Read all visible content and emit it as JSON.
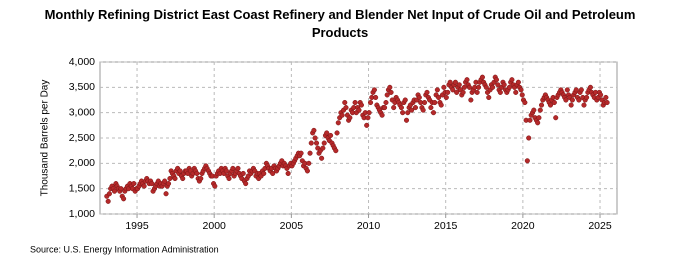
{
  "chart_data": {
    "type": "scatter",
    "title": "Monthly Refining District East Coast Refinery and Blender Net Input of Crude Oil and Petroleum Products",
    "y_label": "Thousand Barrels per Day",
    "source": "Source: U.S. Energy Information Administration",
    "color": "#b5292a",
    "grid": true,
    "xlim": [
      1992.6,
      2026.1
    ],
    "xticks": [
      1995,
      2000,
      2005,
      2010,
      2015,
      2020,
      2025
    ],
    "ylim": [
      1000,
      4000
    ],
    "yticks": [
      {
        "value": 1000,
        "label": "1,000"
      },
      {
        "value": 1500,
        "label": "1,500"
      },
      {
        "value": 2000,
        "label": "2,000"
      },
      {
        "value": 2500,
        "label": "2,500"
      },
      {
        "value": 3000,
        "label": "3,000"
      },
      {
        "value": 3500,
        "label": "3,500"
      },
      {
        "value": 4000,
        "label": "4,000"
      }
    ],
    "x": [
      1993.04,
      1993.13,
      1993.21,
      1993.29,
      1993.38,
      1993.46,
      1993.54,
      1993.63,
      1993.71,
      1993.79,
      1993.88,
      1993.96,
      1994.04,
      1994.13,
      1994.21,
      1994.29,
      1994.38,
      1994.46,
      1994.54,
      1994.63,
      1994.71,
      1994.79,
      1994.88,
      1994.96,
      1995.04,
      1995.13,
      1995.21,
      1995.29,
      1995.38,
      1995.46,
      1995.54,
      1995.63,
      1995.71,
      1995.79,
      1995.88,
      1995.96,
      1996.04,
      1996.13,
      1996.21,
      1996.29,
      1996.38,
      1996.46,
      1996.54,
      1996.63,
      1996.71,
      1996.79,
      1996.88,
      1996.96,
      1997.04,
      1997.13,
      1997.21,
      1997.29,
      1997.38,
      1997.46,
      1997.54,
      1997.63,
      1997.71,
      1997.79,
      1997.88,
      1997.96,
      1998.04,
      1998.13,
      1998.21,
      1998.29,
      1998.38,
      1998.46,
      1998.54,
      1998.63,
      1998.71,
      1998.79,
      1998.88,
      1998.96,
      1999.04,
      1999.13,
      1999.21,
      1999.29,
      1999.38,
      1999.46,
      1999.54,
      1999.63,
      1999.71,
      1999.79,
      1999.88,
      1999.96,
      2000.04,
      2000.13,
      2000.21,
      2000.29,
      2000.38,
      2000.46,
      2000.54,
      2000.63,
      2000.71,
      2000.79,
      2000.88,
      2000.96,
      2001.04,
      2001.13,
      2001.21,
      2001.29,
      2001.38,
      2001.46,
      2001.54,
      2001.63,
      2001.71,
      2001.79,
      2001.88,
      2001.96,
      2002.04,
      2002.13,
      2002.21,
      2002.29,
      2002.38,
      2002.46,
      2002.54,
      2002.63,
      2002.71,
      2002.79,
      2002.88,
      2002.96,
      2003.04,
      2003.13,
      2003.21,
      2003.29,
      2003.38,
      2003.46,
      2003.54,
      2003.63,
      2003.71,
      2003.79,
      2003.88,
      2003.96,
      2004.04,
      2004.13,
      2004.21,
      2004.29,
      2004.38,
      2004.46,
      2004.54,
      2004.63,
      2004.71,
      2004.79,
      2004.88,
      2004.96,
      2005.04,
      2005.13,
      2005.21,
      2005.29,
      2005.38,
      2005.46,
      2005.54,
      2005.63,
      2005.71,
      2005.79,
      2005.88,
      2005.96,
      2006.04,
      2006.13,
      2006.21,
      2006.29,
      2006.38,
      2006.46,
      2006.54,
      2006.63,
      2006.71,
      2006.79,
      2006.88,
      2006.96,
      2007.04,
      2007.13,
      2007.21,
      2007.29,
      2007.38,
      2007.46,
      2007.54,
      2007.63,
      2007.71,
      2007.79,
      2007.88,
      2007.96,
      2008.04,
      2008.13,
      2008.21,
      2008.29,
      2008.38,
      2008.46,
      2008.54,
      2008.63,
      2008.71,
      2008.79,
      2008.88,
      2008.96,
      2009.04,
      2009.13,
      2009.21,
      2009.29,
      2009.38,
      2009.46,
      2009.54,
      2009.63,
      2009.71,
      2009.79,
      2009.88,
      2009.96,
      2010.04,
      2010.13,
      2010.21,
      2010.29,
      2010.38,
      2010.46,
      2010.54,
      2010.63,
      2010.71,
      2010.79,
      2010.88,
      2010.96,
      2011.04,
      2011.13,
      2011.21,
      2011.29,
      2011.38,
      2011.46,
      2011.54,
      2011.63,
      2011.71,
      2011.79,
      2011.88,
      2011.96,
      2012.04,
      2012.13,
      2012.21,
      2012.29,
      2012.38,
      2012.46,
      2012.54,
      2012.63,
      2012.71,
      2012.79,
      2012.88,
      2012.96,
      2013.04,
      2013.13,
      2013.21,
      2013.29,
      2013.38,
      2013.46,
      2013.54,
      2013.63,
      2013.71,
      2013.79,
      2013.88,
      2013.96,
      2014.04,
      2014.13,
      2014.21,
      2014.29,
      2014.38,
      2014.46,
      2014.54,
      2014.63,
      2014.71,
      2014.79,
      2014.88,
      2014.96,
      2015.04,
      2015.13,
      2015.21,
      2015.29,
      2015.38,
      2015.46,
      2015.54,
      2015.63,
      2015.71,
      2015.79,
      2015.88,
      2015.96,
      2016.04,
      2016.13,
      2016.21,
      2016.29,
      2016.38,
      2016.46,
      2016.54,
      2016.63,
      2016.71,
      2016.79,
      2016.88,
      2016.96,
      2017.04,
      2017.13,
      2017.21,
      2017.29,
      2017.38,
      2017.46,
      2017.54,
      2017.63,
      2017.71,
      2017.79,
      2017.88,
      2017.96,
      2018.04,
      2018.13,
      2018.21,
      2018.29,
      2018.38,
      2018.46,
      2018.54,
      2018.63,
      2018.71,
      2018.79,
      2018.88,
      2018.96,
      2019.04,
      2019.13,
      2019.21,
      2019.29,
      2019.38,
      2019.46,
      2019.54,
      2019.63,
      2019.71,
      2019.79,
      2019.88,
      2019.96,
      2020.04,
      2020.13,
      2020.21,
      2020.29,
      2020.38,
      2020.46,
      2020.54,
      2020.63,
      2020.71,
      2020.79,
      2020.88,
      2020.96,
      2021.04,
      2021.13,
      2021.21,
      2021.29,
      2021.38,
      2021.46,
      2021.54,
      2021.63,
      2021.71,
      2021.79,
      2021.88,
      2021.96,
      2022.04,
      2022.13,
      2022.21,
      2022.29,
      2022.38,
      2022.46,
      2022.54,
      2022.63,
      2022.71,
      2022.79,
      2022.88,
      2022.96,
      2023.04,
      2023.13,
      2023.21,
      2023.29,
      2023.38,
      2023.46,
      2023.54,
      2023.63,
      2023.71,
      2023.79,
      2023.88,
      2023.96,
      2024.04,
      2024.13,
      2024.21,
      2024.29,
      2024.38,
      2024.46,
      2024.54,
      2024.63,
      2024.71,
      2024.79,
      2024.88,
      2024.96,
      2025.04,
      2025.13,
      2025.21,
      2025.29,
      2025.38,
      2025.46
    ],
    "values": [
      1350,
      1250,
      1400,
      1500,
      1550,
      1500,
      1450,
      1600,
      1550,
      1500,
      1450,
      1500,
      1350,
      1300,
      1450,
      1500,
      1550,
      1500,
      1600,
      1550,
      1500,
      1600,
      1450,
      1500,
      1500,
      1550,
      1600,
      1650,
      1600,
      1550,
      1650,
      1700,
      1650,
      1600,
      1650,
      1600,
      1450,
      1500,
      1550,
      1600,
      1650,
      1550,
      1600,
      1550,
      1600,
      1650,
      1400,
      1550,
      1600,
      1700,
      1850,
      1800,
      1750,
      1700,
      1850,
      1900,
      1800,
      1850,
      1750,
      1700,
      1800,
      1850,
      1850,
      1800,
      1900,
      1850,
      1750,
      1800,
      1900,
      1850,
      1800,
      1700,
      1650,
      1700,
      1800,
      1850,
      1900,
      1950,
      1900,
      1850,
      1800,
      1750,
      1750,
      1600,
      1550,
      1750,
      1800,
      1850,
      1800,
      1900,
      1850,
      1800,
      1900,
      1850,
      1750,
      1700,
      1800,
      1850,
      1900,
      1750,
      1800,
      1850,
      1900,
      1800,
      1750,
      1700,
      1800,
      1650,
      1600,
      1700,
      1750,
      1850,
      1800,
      1850,
      1900,
      1850,
      1750,
      1800,
      1700,
      1800,
      1750,
      1850,
      1800,
      1900,
      2000,
      1950,
      1900,
      1850,
      1900,
      1800,
      1950,
      1900,
      1850,
      1900,
      1950,
      2000,
      2050,
      1950,
      2000,
      1950,
      1900,
      1800,
      1950,
      2000,
      1950,
      2000,
      2050,
      2100,
      2150,
      2200,
      2150,
      2200,
      2050,
      1950,
      2000,
      1900,
      1850,
      2000,
      2200,
      2400,
      2600,
      2650,
      2500,
      2400,
      2300,
      2200,
      2250,
      2100,
      2300,
      2400,
      2550,
      2600,
      2500,
      2450,
      2550,
      2400,
      2350,
      2300,
      2250,
      2600,
      2800,
      2900,
      3000,
      2950,
      3050,
      3200,
      3100,
      2950,
      2850,
      2900,
      3050,
      3000,
      3100,
      3200,
      3000,
      3100,
      3050,
      3200,
      3150,
      2950,
      2900,
      3000,
      2750,
      2900,
      3000,
      3200,
      3300,
      3400,
      3450,
      3300,
      3150,
      3100,
      3050,
      3000,
      2950,
      3100,
      3100,
      3200,
      3350,
      3450,
      3500,
      3400,
      3250,
      3100,
      3200,
      3300,
      3250,
      3200,
      3150,
      3100,
      3000,
      3200,
      3250,
      2850,
      3000,
      3100,
      3150,
      3050,
      3200,
      3250,
      3100,
      3250,
      3350,
      3300,
      3200,
      3100,
      3050,
      3200,
      3350,
      3400,
      3300,
      3250,
      3100,
      3200,
      3000,
      3200,
      3350,
      3450,
      3300,
      3200,
      3150,
      3350,
      3500,
      3400,
      3300,
      3400,
      3550,
      3600,
      3500,
      3450,
      3550,
      3600,
      3400,
      3500,
      3550,
      3450,
      3350,
      3400,
      3500,
      3600,
      3650,
      3550,
      3500,
      3250,
      3400,
      3450,
      3500,
      3600,
      3400,
      3500,
      3600,
      3650,
      3700,
      3600,
      3550,
      3500,
      3400,
      3300,
      3450,
      3550,
      3500,
      3600,
      3700,
      3650,
      3550,
      3450,
      3400,
      3500,
      3600,
      3550,
      3450,
      3400,
      3450,
      3500,
      3600,
      3650,
      3550,
      3500,
      3400,
      3550,
      3600,
      3500,
      3450,
      3350,
      3250,
      3200,
      2850,
      2050,
      2500,
      2850,
      2950,
      3000,
      3050,
      2900,
      2850,
      2800,
      2900,
      3050,
      3150,
      3250,
      3300,
      3350,
      3300,
      3250,
      3200,
      3150,
      3250,
      3300,
      3200,
      2900,
      3300,
      3350,
      3400,
      3450,
      3400,
      3350,
      3300,
      3250,
      3450,
      3350,
      3300,
      3150,
      3250,
      3350,
      3400,
      3450,
      3300,
      3250,
      3400,
      3450,
      3300,
      3150,
      3250,
      3300,
      3400,
      3450,
      3500,
      3400,
      3350,
      3300,
      3400,
      3250,
      3300,
      3400,
      3350,
      3250,
      3150,
      3200,
      3300,
      3200
    ]
  }
}
